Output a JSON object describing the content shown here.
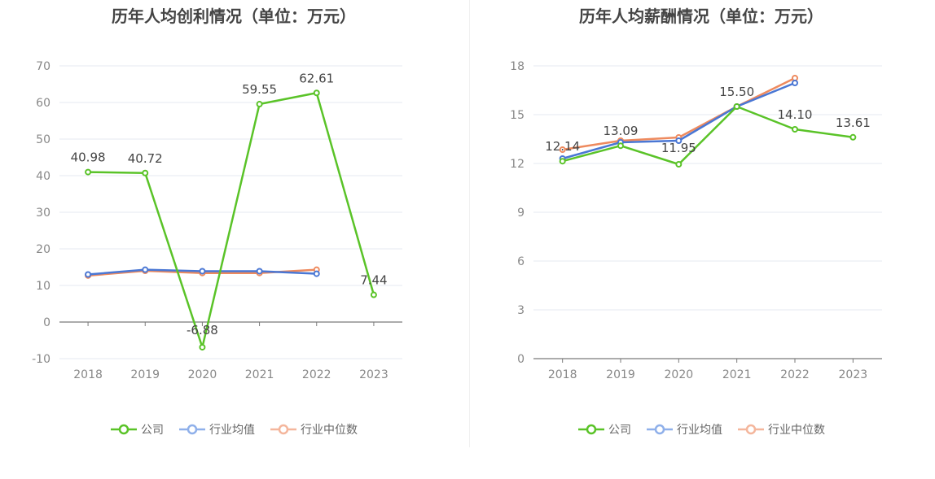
{
  "colors": {
    "company": "#5ac328",
    "avg": "#4a77d4",
    "median": "#ee8a5e",
    "avg_legend": "#8fb0ea",
    "median_legend": "#f4b69c",
    "axis": "#7a7a7a",
    "grid": "#e6e9f2",
    "tick_text": "#888888",
    "label_text": "#444444"
  },
  "legend": {
    "company": "公司",
    "avg": "行业均值",
    "median": "行业中位数"
  },
  "chart_data": [
    {
      "type": "line",
      "title": "历年人均创利情况（单位：万元）",
      "categories": [
        "2018",
        "2019",
        "2020",
        "2021",
        "2022",
        "2023"
      ],
      "yticks": [
        "-10",
        "0",
        "10",
        "20",
        "30",
        "40",
        "50",
        "60",
        "70"
      ],
      "ylim": [
        -10,
        70
      ],
      "series": [
        {
          "name": "公司",
          "key": "company",
          "values": [
            40.98,
            40.72,
            -6.88,
            59.55,
            62.61,
            7.44
          ],
          "labels": [
            "40.98",
            "40.72",
            "-6.88",
            "59.55",
            "62.61",
            "7.44"
          ]
        },
        {
          "name": "行业均值",
          "key": "avg",
          "values": [
            13.0,
            14.3,
            13.9,
            13.9,
            13.2,
            null
          ]
        },
        {
          "name": "行业中位数",
          "key": "median",
          "values": [
            12.7,
            14.0,
            13.4,
            13.4,
            14.3,
            null
          ]
        }
      ]
    },
    {
      "type": "line",
      "title": "历年人均薪酬情况（单位：万元）",
      "categories": [
        "2018",
        "2019",
        "2020",
        "2021",
        "2022",
        "2023"
      ],
      "yticks": [
        "0",
        "3",
        "6",
        "9",
        "12",
        "15",
        "18"
      ],
      "ylim": [
        0,
        18
      ],
      "series": [
        {
          "name": "公司",
          "key": "company",
          "values": [
            12.14,
            13.09,
            11.95,
            15.5,
            14.1,
            13.61
          ],
          "labels": [
            "12.14",
            "13.09",
            "11.95",
            "15.50",
            "14.10",
            "13.61"
          ]
        },
        {
          "name": "行业均值",
          "key": "avg",
          "values": [
            12.3,
            13.3,
            13.4,
            15.5,
            16.95,
            null
          ]
        },
        {
          "name": "行业中位数",
          "key": "median",
          "values": [
            12.85,
            13.4,
            13.6,
            15.5,
            17.25,
            null
          ]
        }
      ]
    }
  ]
}
